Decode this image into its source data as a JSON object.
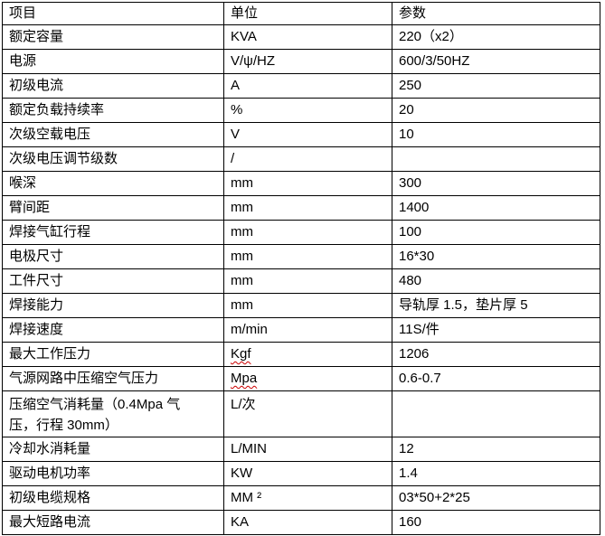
{
  "table": {
    "headers": [
      "项目",
      "单位",
      "参数"
    ],
    "spellcheck_color": "#cc0000",
    "rows": [
      {
        "item": "额定容量",
        "unit": "KVA",
        "value": "220（x2）"
      },
      {
        "item": "电源",
        "unit": "V/ψ/HZ",
        "value": "600/3/50HZ"
      },
      {
        "item": "初级电流",
        "unit": "A",
        "value": "250"
      },
      {
        "item": "额定负载持续率",
        "unit": "%",
        "value": "20"
      },
      {
        "item": "次级空载电压",
        "unit": "V",
        "value": "10"
      },
      {
        "item": "次级电压调节级数",
        "unit": "/",
        "value": ""
      },
      {
        "item": "喉深",
        "unit": "mm",
        "value": "300"
      },
      {
        "item": "臂间距",
        "unit": "mm",
        "value": "1400"
      },
      {
        "item": "焊接气缸行程",
        "unit": "mm",
        "value": "100"
      },
      {
        "item": "电极尺寸",
        "unit": "mm",
        "value": "16*30"
      },
      {
        "item": "工件尺寸",
        "unit": "mm",
        "value": "480"
      },
      {
        "item": "焊接能力",
        "unit": "mm",
        "value": "导轨厚 1.5，垫片厚 5"
      },
      {
        "item": "焊接速度",
        "unit": "m/min",
        "value": "11S/件"
      },
      {
        "item": "最大工作压力",
        "unit": "Kgf",
        "value": "1206",
        "unit_spellcheck": true
      },
      {
        "item": "气源网路中压缩空气压力",
        "unit": "Mpa",
        "value": "0.6-0.7",
        "unit_spellcheck": true
      },
      {
        "item": "压缩空气消耗量（0.4Mpa 气\n压，行程 30mm）",
        "unit": "L/次",
        "value": "",
        "tall": true
      },
      {
        "item": "冷却水消耗量",
        "unit": "L/MIN",
        "value": "12"
      },
      {
        "item": "驱动电机功率",
        "unit": "KW",
        "value": "1.4"
      },
      {
        "item": "初级电缆规格",
        "unit": "MM ²",
        "value": "03*50+2*25"
      },
      {
        "item": "最大短路电流",
        "unit": "KA",
        "value": "160"
      }
    ]
  }
}
